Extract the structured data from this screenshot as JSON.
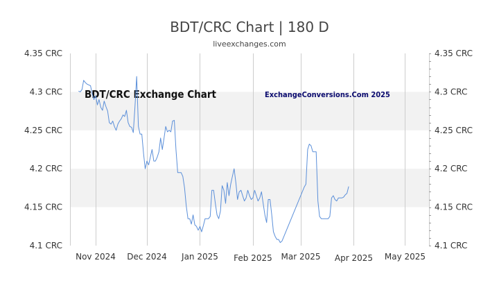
{
  "header": {
    "title": "BDT/CRC Chart | 180 D",
    "subtitle": "liveexchanges.com"
  },
  "watermarks": {
    "left": "BDT/CRC Exchange Chart",
    "right": "ExchangeConversions.Com 2025"
  },
  "colors": {
    "line": "#5b8fd9",
    "band": "#f2f2f2",
    "grid": "#cccccc",
    "text": "#333333"
  },
  "chart_data": {
    "type": "line",
    "title": "BDT/CRC Chart | 180 D",
    "xlabel": "",
    "ylabel": "",
    "ylim": [
      4.1,
      4.35
    ],
    "grid": true,
    "y_ticks": [
      {
        "value": 4.35,
        "label": "4.35 CRC"
      },
      {
        "value": 4.3,
        "label": "4.3 CRC"
      },
      {
        "value": 4.25,
        "label": "4.25 CRC"
      },
      {
        "value": 4.2,
        "label": "4.2 CRC"
      },
      {
        "value": 4.15,
        "label": "4.15 CRC"
      },
      {
        "value": 4.1,
        "label": "4.1 CRC"
      }
    ],
    "x_ticks": [
      {
        "day": 15,
        "label": "Nov 2024"
      },
      {
        "day": 45,
        "label": "Dec 2024"
      },
      {
        "day": 76,
        "label": "Jan 2025"
      },
      {
        "day": 107,
        "label": "Feb 2025"
      },
      {
        "day": 135,
        "label": "Mar 2025"
      },
      {
        "day": 166,
        "label": "Apr 2025"
      },
      {
        "day": 196,
        "label": "May 2025"
      }
    ],
    "xlim": [
      0,
      210
    ],
    "series": [
      {
        "values": [
          [
            5,
            4.301
          ],
          [
            6,
            4.3
          ],
          [
            7,
            4.303
          ],
          [
            8,
            4.315
          ],
          [
            9,
            4.312
          ],
          [
            10,
            4.31
          ],
          [
            11,
            4.309
          ],
          [
            12,
            4.308
          ],
          [
            13,
            4.297
          ],
          [
            14,
            4.29
          ],
          [
            15,
            4.295
          ],
          [
            16,
            4.283
          ],
          [
            17,
            4.29
          ],
          [
            18,
            4.28
          ],
          [
            19,
            4.276
          ],
          [
            20,
            4.288
          ],
          [
            21,
            4.281
          ],
          [
            22,
            4.275
          ],
          [
            23,
            4.26
          ],
          [
            24,
            4.258
          ],
          [
            25,
            4.262
          ],
          [
            26,
            4.255
          ],
          [
            27,
            4.25
          ],
          [
            28,
            4.258
          ],
          [
            29,
            4.262
          ],
          [
            30,
            4.265
          ],
          [
            31,
            4.27
          ],
          [
            32,
            4.268
          ],
          [
            33,
            4.276
          ],
          [
            34,
            4.26
          ],
          [
            35,
            4.255
          ],
          [
            36,
            4.254
          ],
          [
            37,
            4.247
          ],
          [
            38,
            4.28
          ],
          [
            39,
            4.32
          ],
          [
            40,
            4.255
          ],
          [
            41,
            4.245
          ],
          [
            42,
            4.245
          ],
          [
            43,
            4.22
          ],
          [
            44,
            4.2
          ],
          [
            45,
            4.21
          ],
          [
            46,
            4.205
          ],
          [
            47,
            4.215
          ],
          [
            48,
            4.225
          ],
          [
            49,
            4.21
          ],
          [
            50,
            4.21
          ],
          [
            51,
            4.215
          ],
          [
            52,
            4.222
          ],
          [
            53,
            4.24
          ],
          [
            54,
            4.225
          ],
          [
            55,
            4.24
          ],
          [
            56,
            4.255
          ],
          [
            57,
            4.248
          ],
          [
            58,
            4.25
          ],
          [
            59,
            4.248
          ],
          [
            60,
            4.262
          ],
          [
            61,
            4.263
          ],
          [
            62,
            4.225
          ],
          [
            63,
            4.195
          ],
          [
            64,
            4.195
          ],
          [
            65,
            4.195
          ],
          [
            66,
            4.19
          ],
          [
            67,
            4.175
          ],
          [
            68,
            4.152
          ],
          [
            69,
            4.135
          ],
          [
            70,
            4.135
          ],
          [
            71,
            4.128
          ],
          [
            72,
            4.14
          ],
          [
            73,
            4.127
          ],
          [
            74,
            4.125
          ],
          [
            75,
            4.12
          ],
          [
            76,
            4.125
          ],
          [
            77,
            4.118
          ],
          [
            78,
            4.126
          ],
          [
            79,
            4.135
          ],
          [
            80,
            4.135
          ],
          [
            81,
            4.135
          ],
          [
            82,
            4.138
          ],
          [
            83,
            4.172
          ],
          [
            84,
            4.172
          ],
          [
            85,
            4.155
          ],
          [
            86,
            4.14
          ],
          [
            87,
            4.135
          ],
          [
            88,
            4.145
          ],
          [
            89,
            4.178
          ],
          [
            90,
            4.172
          ],
          [
            91,
            4.155
          ],
          [
            92,
            4.182
          ],
          [
            93,
            4.165
          ],
          [
            94,
            4.18
          ],
          [
            95,
            4.19
          ],
          [
            96,
            4.2
          ],
          [
            97,
            4.182
          ],
          [
            98,
            4.16
          ],
          [
            99,
            4.17
          ],
          [
            100,
            4.172
          ],
          [
            101,
            4.165
          ],
          [
            102,
            4.158
          ],
          [
            103,
            4.162
          ],
          [
            104,
            4.172
          ],
          [
            105,
            4.165
          ],
          [
            106,
            4.16
          ],
          [
            107,
            4.162
          ],
          [
            108,
            4.172
          ],
          [
            109,
            4.165
          ],
          [
            110,
            4.158
          ],
          [
            111,
            4.162
          ],
          [
            112,
            4.17
          ],
          [
            113,
            4.155
          ],
          [
            114,
            4.14
          ],
          [
            115,
            4.13
          ],
          [
            116,
            4.16
          ],
          [
            117,
            4.16
          ],
          [
            118,
            4.14
          ],
          [
            119,
            4.118
          ],
          [
            120,
            4.112
          ],
          [
            121,
            4.108
          ],
          [
            122,
            4.108
          ],
          [
            123,
            4.104
          ],
          [
            124,
            4.106
          ],
          [
            137,
            4.176
          ],
          [
            138,
            4.18
          ],
          [
            139,
            4.225
          ],
          [
            140,
            4.232
          ],
          [
            141,
            4.23
          ],
          [
            142,
            4.222
          ],
          [
            143,
            4.222
          ],
          [
            144,
            4.222
          ],
          [
            145,
            4.158
          ],
          [
            146,
            4.138
          ],
          [
            147,
            4.135
          ],
          [
            148,
            4.135
          ],
          [
            149,
            4.135
          ],
          [
            150,
            4.135
          ],
          [
            151,
            4.135
          ],
          [
            152,
            4.138
          ],
          [
            153,
            4.162
          ],
          [
            154,
            4.165
          ],
          [
            155,
            4.16
          ],
          [
            156,
            4.158
          ],
          [
            157,
            4.162
          ],
          [
            158,
            4.162
          ],
          [
            159,
            4.162
          ],
          [
            160,
            4.163
          ],
          [
            161,
            4.166
          ],
          [
            162,
            4.168
          ],
          [
            163,
            4.177
          ]
        ]
      }
    ]
  }
}
